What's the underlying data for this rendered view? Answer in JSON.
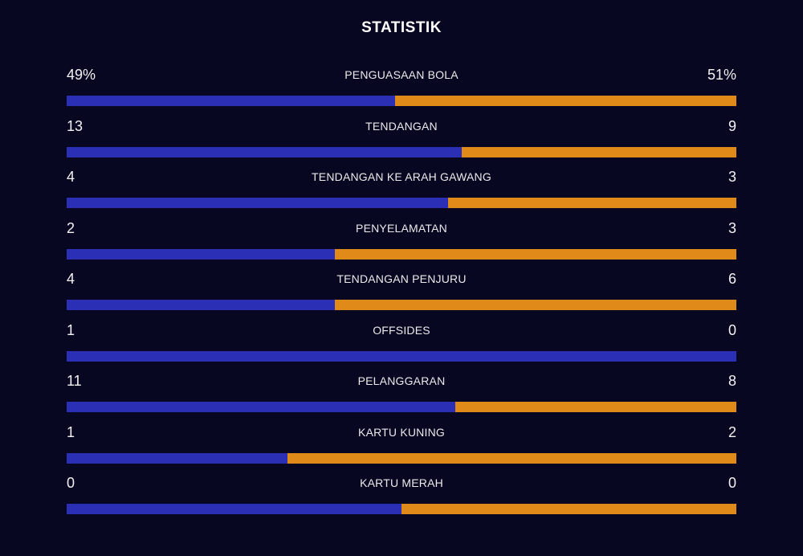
{
  "title": "STATISTIK",
  "colors": {
    "background": "#070722",
    "home_bar": "#2a2fb6",
    "away_bar": "#e08a1a"
  },
  "stats": [
    {
      "label": "PENGUASAAN BOLA",
      "home": "49%",
      "away": "51%",
      "home_share": 0.49
    },
    {
      "label": "TENDANGAN",
      "home": "13",
      "away": "9",
      "home_share": 0.59
    },
    {
      "label": "TENDANGAN KE ARAH GAWANG",
      "home": "4",
      "away": "3",
      "home_share": 0.57
    },
    {
      "label": "PENYELAMATAN",
      "home": "2",
      "away": "3",
      "home_share": 0.4
    },
    {
      "label": "TENDANGAN PENJURU",
      "home": "4",
      "away": "6",
      "home_share": 0.4
    },
    {
      "label": "OFFSIDES",
      "home": "1",
      "away": "0",
      "home_share": 1.0
    },
    {
      "label": "PELANGGARAN",
      "home": "11",
      "away": "8",
      "home_share": 0.58
    },
    {
      "label": "KARTU KUNING",
      "home": "1",
      "away": "2",
      "home_share": 0.33
    },
    {
      "label": "KARTU MERAH",
      "home": "0",
      "away": "0",
      "home_share": 0.5
    }
  ]
}
